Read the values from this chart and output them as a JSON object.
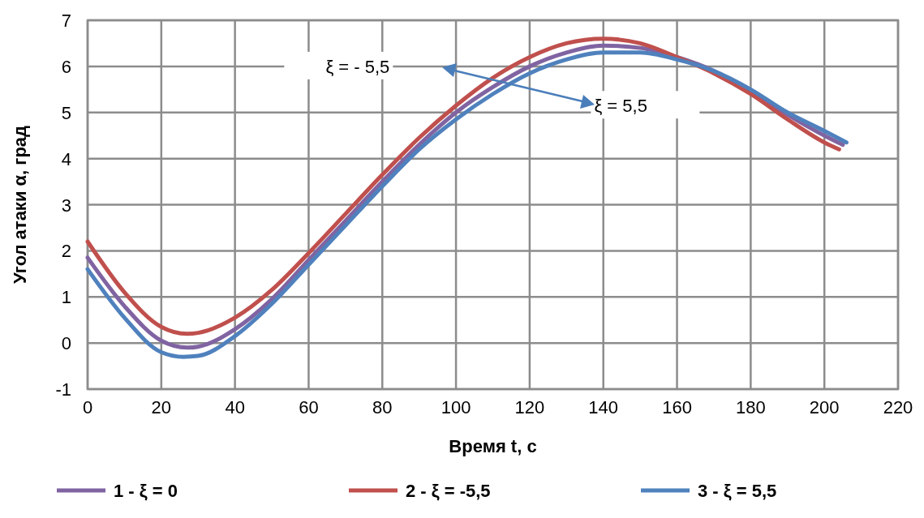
{
  "chart_data": {
    "type": "line",
    "xlabel": "Время t, с",
    "ylabel": "Угол  атаки α, град",
    "xlim": [
      0,
      220
    ],
    "xticks": [
      0,
      20,
      40,
      60,
      80,
      100,
      120,
      140,
      160,
      180,
      200,
      220
    ],
    "ylim": [
      -1,
      7
    ],
    "yticks": [
      -1,
      0,
      1,
      2,
      3,
      4,
      5,
      6,
      7
    ],
    "grid": true,
    "legend": "bottom",
    "marker": "none",
    "line_style": "solid",
    "annotations": [
      "ξ = - 5,5",
      "ξ =  5,5"
    ],
    "series": [
      {
        "name": "1 - ξ = 0",
        "color": "#8064a2",
        "x": [
          0,
          10,
          20,
          27,
          30,
          40,
          50,
          60,
          70,
          80,
          90,
          100,
          110,
          120,
          130,
          140,
          150,
          160,
          170,
          180,
          190,
          200,
          205
        ],
        "values": [
          1.85,
          0.8,
          0.05,
          -0.1,
          -0.08,
          0.3,
          0.95,
          1.8,
          2.65,
          3.5,
          4.3,
          5.0,
          5.55,
          6.0,
          6.3,
          6.45,
          6.4,
          6.2,
          5.9,
          5.45,
          4.95,
          4.5,
          4.3
        ]
      },
      {
        "name": "2 - ξ = -5,5",
        "color": "#c0504d",
        "x": [
          0,
          10,
          20,
          27,
          30,
          40,
          50,
          60,
          70,
          80,
          90,
          100,
          110,
          120,
          130,
          140,
          150,
          160,
          170,
          180,
          190,
          200,
          204
        ],
        "values": [
          2.2,
          1.1,
          0.35,
          0.2,
          0.22,
          0.55,
          1.15,
          1.95,
          2.8,
          3.65,
          4.45,
          5.15,
          5.75,
          6.2,
          6.5,
          6.6,
          6.5,
          6.2,
          5.85,
          5.4,
          4.85,
          4.35,
          4.2
        ]
      },
      {
        "name": "3 - ξ = 5,5",
        "color": "#4f81bd",
        "x": [
          0,
          10,
          20,
          26,
          30,
          40,
          50,
          60,
          70,
          80,
          90,
          100,
          110,
          120,
          130,
          140,
          150,
          160,
          170,
          180,
          190,
          200,
          206
        ],
        "values": [
          1.6,
          0.55,
          -0.2,
          -0.3,
          -0.28,
          0.15,
          0.85,
          1.7,
          2.55,
          3.4,
          4.2,
          4.85,
          5.4,
          5.85,
          6.15,
          6.3,
          6.3,
          6.15,
          5.9,
          5.5,
          5.0,
          4.6,
          4.35
        ]
      }
    ]
  }
}
